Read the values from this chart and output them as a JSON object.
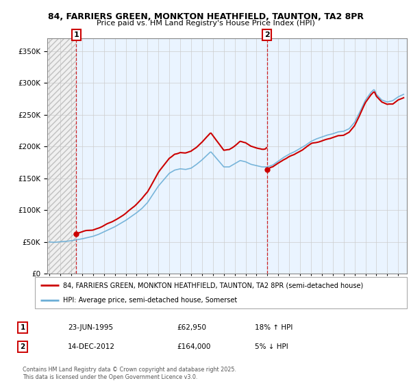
{
  "title1": "84, FARRIERS GREEN, MONKTON HEATHFIELD, TAUNTON, TA2 8PR",
  "title2": "Price paid vs. HM Land Registry's House Price Index (HPI)",
  "legend_line1": "84, FARRIERS GREEN, MONKTON HEATHFIELD, TAUNTON, TA2 8PR (semi-detached house)",
  "legend_line2": "HPI: Average price, semi-detached house, Somerset",
  "footnote": "Contains HM Land Registry data © Crown copyright and database right 2025.\nThis data is licensed under the Open Government Licence v3.0.",
  "annotation1_label": "1",
  "annotation1_date": "23-JUN-1995",
  "annotation1_price": "£62,950",
  "annotation1_hpi": "18% ↑ HPI",
  "annotation2_label": "2",
  "annotation2_date": "14-DEC-2012",
  "annotation2_price": "£164,000",
  "annotation2_hpi": "5% ↓ HPI",
  "sale1_x": 1995.46,
  "sale1_y": 62950,
  "sale2_x": 2012.96,
  "sale2_y": 164000,
  "hpi_color": "#6baed6",
  "price_color": "#cc0000",
  "vline_color": "#cc0000",
  "ylim": [
    0,
    370000
  ],
  "xlim_start": 1992.8,
  "xlim_end": 2025.8
}
